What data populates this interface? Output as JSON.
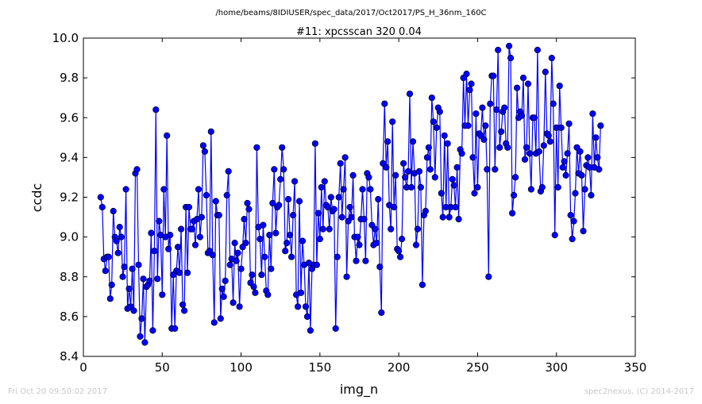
{
  "chart_data": {
    "type": "line",
    "suptitle": "/home/beams/8IDIUSER/spec_data/2017/Oct2017/PS_H_36nm_160C",
    "title": "#11: xpcsscan 320 0.04",
    "xlabel": "img_n",
    "ylabel": "ccdc",
    "xlim": [
      0,
      350
    ],
    "ylim": [
      8.4,
      10.0
    ],
    "xticks": [
      "0",
      "50",
      "100",
      "150",
      "200",
      "250",
      "300",
      "350"
    ],
    "yticks": [
      "8.4",
      "8.6",
      "8.8",
      "9.0",
      "9.2",
      "9.4",
      "9.6",
      "9.8",
      "10.0"
    ],
    "grid": false,
    "series": [
      {
        "color": "#0000ff",
        "x_start": 11,
        "x_step": 1,
        "values": [
          9.2,
          9.15,
          8.89,
          8.83,
          8.9,
          8.9,
          8.69,
          8.76,
          9.13,
          9.0,
          8.98,
          8.92,
          9.05,
          9.0,
          8.8,
          8.85,
          9.24,
          8.64,
          8.74,
          8.65,
          8.84,
          8.63,
          9.32,
          9.34,
          8.86,
          8.5,
          8.59,
          8.79,
          8.47,
          8.75,
          8.76,
          8.78,
          9.02,
          8.53,
          8.93,
          9.64,
          8.79,
          9.08,
          9.01,
          8.71,
          9.24,
          9.0,
          9.51,
          8.94,
          9.01,
          8.54,
          8.81,
          8.54,
          8.83,
          8.95,
          8.82,
          9.04,
          8.66,
          8.63,
          9.15,
          8.82,
          9.15,
          9.04,
          9.04,
          9.08,
          8.96,
          9.09,
          9.24,
          9.0,
          9.1,
          9.46,
          9.43,
          9.21,
          8.92,
          8.93,
          9.53,
          8.91,
          8.57,
          9.18,
          9.11,
          9.11,
          8.59,
          8.74,
          8.7,
          8.78,
          9.21,
          9.33,
          8.86,
          8.89,
          8.67,
          8.97,
          8.88,
          8.92,
          8.65,
          8.84,
          8.95,
          9.09,
          8.97,
          9.17,
          9.14,
          8.77,
          8.81,
          8.75,
          8.72,
          9.45,
          9.05,
          8.99,
          8.81,
          9.06,
          8.9,
          8.73,
          8.71,
          9.01,
          8.84,
          9.17,
          9.34,
          9.02,
          9.15,
          9.16,
          9.29,
          9.45,
          9.34,
          8.93,
          8.97,
          9.19,
          9.01,
          8.9,
          9.11,
          9.28,
          8.71,
          8.65,
          9.18,
          8.72,
          8.98,
          8.86,
          8.65,
          8.6,
          8.87,
          8.53,
          8.84,
          8.86,
          9.47,
          8.86,
          9.12,
          8.99,
          9.25,
          9.04,
          9.28,
          9.16,
          9.15,
          9.04,
          9.2,
          9.13,
          9.14,
          8.54,
          8.9,
          9.2,
          9.37,
          9.1,
          9.24,
          9.4,
          8.8,
          9.08,
          9.15,
          9.1,
          9.31,
          9.0,
          8.88,
          9.0,
          8.96,
          9.09,
          9.24,
          9.09,
          8.88,
          9.32,
          9.3,
          9.24,
          9.06,
          8.96,
          9.04,
          8.97,
          9.19,
          8.85,
          8.62,
          9.37,
          9.67,
          9.35,
          9.48,
          9.16,
          9.04,
          9.58,
          9.15,
          9.31,
          8.94,
          8.93,
          8.9,
          8.99,
          9.37,
          9.3,
          9.25,
          9.33,
          9.72,
          9.25,
          9.48,
          9.32,
          8.96,
          9.04,
          9.33,
          9.25,
          8.76,
          9.11,
          9.13,
          9.4,
          9.45,
          9.34,
          9.7,
          9.58,
          9.3,
          9.55,
          9.65,
          9.63,
          9.22,
          9.1,
          9.51,
          9.15,
          9.47,
          9.1,
          9.15,
          9.29,
          9.26,
          9.15,
          9.35,
          9.09,
          9.44,
          9.42,
          9.8,
          9.56,
          9.82,
          9.56,
          9.74,
          9.77,
          9.4,
          9.22,
          9.62,
          9.25,
          9.52,
          9.51,
          9.65,
          9.49,
          9.56,
          9.34,
          8.8,
          9.67,
          9.81,
          9.81,
          9.34,
          9.64,
          9.94,
          9.45,
          9.53,
          9.63,
          9.65,
          9.47,
          9.45,
          9.96,
          9.9,
          9.12,
          9.21,
          9.3,
          9.75,
          9.6,
          9.63,
          9.61,
          9.8,
          9.39,
          9.45,
          9.77,
          9.42,
          9.24,
          9.6,
          9.6,
          9.42,
          9.94,
          9.43,
          9.23,
          9.25,
          9.46,
          9.83,
          9.52,
          9.51,
          9.48,
          9.9,
          9.67,
          9.01,
          9.55,
          9.25,
          9.76,
          9.55,
          9.35,
          9.38,
          9.31,
          9.42,
          9.57,
          9.11,
          8.99,
          9.08,
          9.22,
          9.45,
          9.32,
          9.43,
          9.31,
          9.03,
          9.24,
          9.36,
          9.4,
          9.35,
          9.21,
          9.62,
          9.35,
          9.5,
          9.4,
          9.34,
          9.56
        ]
      }
    ]
  },
  "footer": {
    "left": "Fri Oct 20 09:50:02 2017",
    "right": "spec2nexus, (C) 2014-2017"
  }
}
